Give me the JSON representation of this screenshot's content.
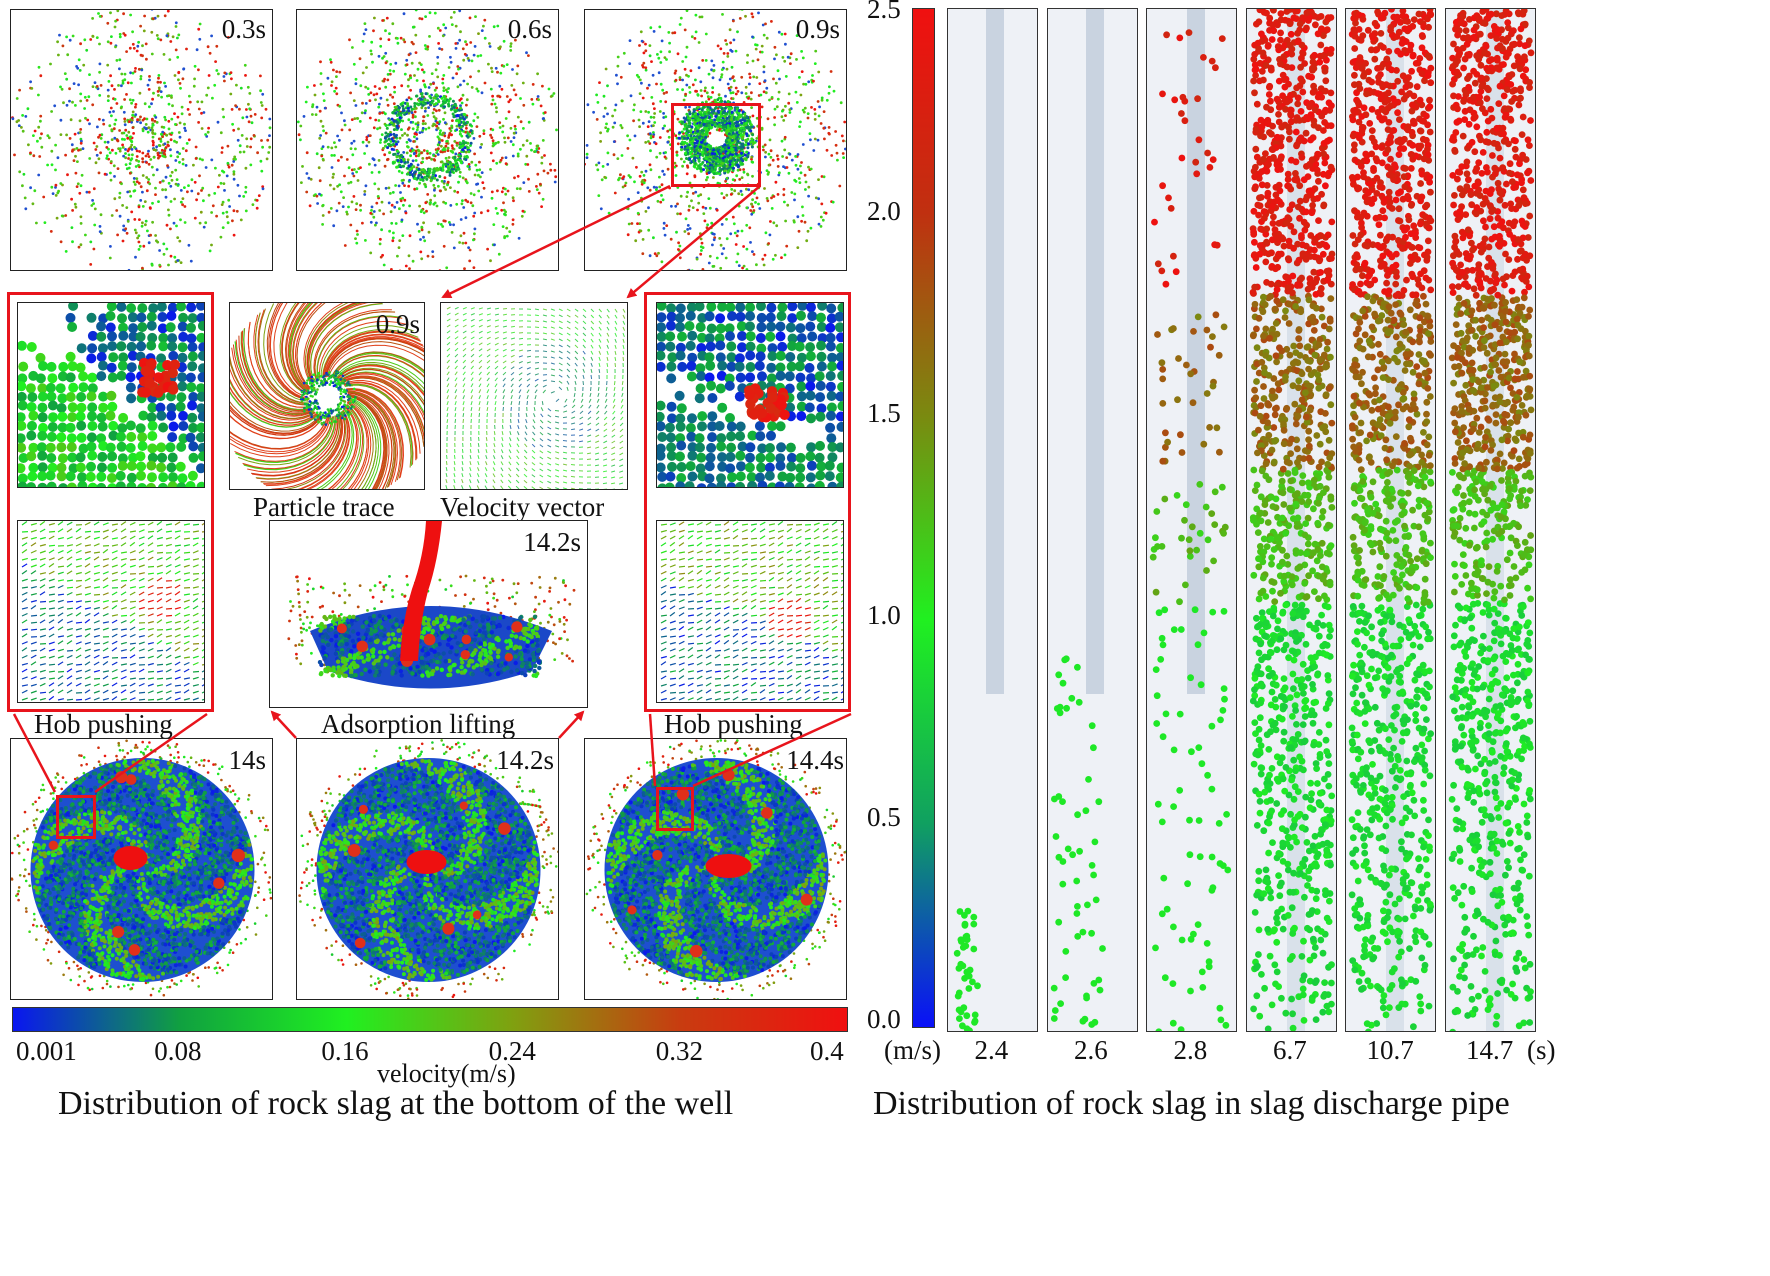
{
  "left": {
    "top_panels": [
      {
        "time": "0.3s"
      },
      {
        "time": "0.6s"
      },
      {
        "time": "0.9s"
      }
    ],
    "mid_panels": {
      "particle_trace": {
        "time": "0.9s",
        "caption": "Particle trace"
      },
      "velocity_vector": {
        "caption": "Velocity vector"
      },
      "adsorption": {
        "time": "14.2s",
        "caption": "Adsorption lifting"
      },
      "hob_left_caption": "Hob pushing",
      "hob_right_caption": "Hob pushing"
    },
    "bottom_panels": [
      {
        "time": "14s"
      },
      {
        "time": "14.2s"
      },
      {
        "time": "14.4s"
      }
    ],
    "colorbar": {
      "ticks": [
        "0.001",
        "0.08",
        "0.16",
        "0.24",
        "0.32",
        "0.4"
      ],
      "label": "velocity(m/s)",
      "min": 0.001,
      "max": 0.4,
      "colors": [
        "#0a16f0",
        "#10a040",
        "#20f020",
        "#80a010",
        "#c83c10",
        "#f01010"
      ]
    },
    "title": "Distribution of rock slag at the bottom of the well"
  },
  "right": {
    "colorbar": {
      "ticks": [
        "2.5",
        "2.0",
        "1.5",
        "1.0",
        "0.5",
        "0.0"
      ],
      "min": 0.0,
      "max": 2.5,
      "unit": "(m/s)",
      "colors": [
        "#0a10f8",
        "#10a060",
        "#20f020",
        "#7a8a10",
        "#c03010",
        "#f01010"
      ]
    },
    "pipes": [
      {
        "time": "2.4",
        "fill": 0.12
      },
      {
        "time": "2.6",
        "fill": 0.38
      },
      {
        "time": "2.8",
        "fill": 0.98
      },
      {
        "time": "6.7",
        "fill": 1.0
      },
      {
        "time": "10.7",
        "fill": 1.0
      },
      {
        "time": "14.7",
        "fill": 1.0
      }
    ],
    "time_unit": "(s)",
    "title": "Distribution of rock slag in slag discharge pipe"
  },
  "colors": {
    "accent_red": "#e8141c",
    "pipe_bg": "#eef1f6",
    "inner_pipe": "#c9d3e0"
  }
}
